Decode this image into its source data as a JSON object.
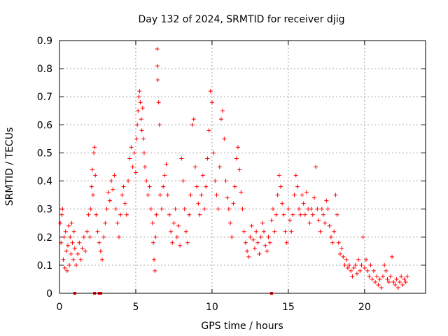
{
  "chart_data": {
    "type": "scatter",
    "title": "Day 132 of 2024, SRMTID for receiver djig",
    "xlabel": "GPS time / hours",
    "ylabel": "SRMTID / TECUs",
    "xlim": [
      0,
      24
    ],
    "ylim": [
      0,
      0.9
    ],
    "x_ticks": [
      0,
      5,
      10,
      15,
      20
    ],
    "y_ticks": [
      0,
      0.1,
      0.2,
      0.3,
      0.4,
      0.5,
      0.6,
      0.7,
      0.8,
      0.9
    ],
    "x_tick_labels": [
      "0",
      "5",
      "10",
      "15",
      "20"
    ],
    "y_tick_labels": [
      "0",
      "0.1",
      "0.2",
      "0.3",
      "0.4",
      "0.5",
      "0.6",
      "0.7",
      "0.8",
      "0.9"
    ],
    "grid": true,
    "marker": "+",
    "color": "#ff0000",
    "series": [
      {
        "name": "SRMTID",
        "points": [
          [
            0.05,
            0.25
          ],
          [
            0.1,
            0.18
          ],
          [
            0.15,
            0.28
          ],
          [
            0.2,
            0.3
          ],
          [
            0.25,
            0.12
          ],
          [
            0.3,
            0.2
          ],
          [
            0.35,
            0.09
          ],
          [
            0.4,
            0.22
          ],
          [
            0.45,
            0.15
          ],
          [
            0.5,
            0.08
          ],
          [
            0.55,
            0.17
          ],
          [
            0.6,
            0.24
          ],
          [
            0.65,
            0.1
          ],
          [
            0.7,
            0.2
          ],
          [
            0.75,
            0.14
          ],
          [
            0.8,
            0.25
          ],
          [
            0.85,
            0.18
          ],
          [
            0.9,
            0.12
          ],
          [
            0.95,
            0.22
          ],
          [
            1.0,
            0.16
          ],
          [
            1.1,
            0.1
          ],
          [
            1.2,
            0.14
          ],
          [
            1.3,
            0.18
          ],
          [
            1.4,
            0.12
          ],
          [
            1.5,
            0.16
          ],
          [
            1.6,
            0.2
          ],
          [
            1.7,
            0.15
          ],
          [
            1.8,
            0.22
          ],
          [
            1.9,
            0.28
          ],
          [
            2.0,
            0.2
          ],
          [
            2.05,
            0.3
          ],
          [
            2.1,
            0.38
          ],
          [
            2.15,
            0.44
          ],
          [
            2.2,
            0.35
          ],
          [
            2.25,
            0.5
          ],
          [
            2.3,
            0.52
          ],
          [
            2.35,
            0.42
          ],
          [
            2.4,
            0.28
          ],
          [
            2.5,
            0.22
          ],
          [
            2.6,
            0.18
          ],
          [
            2.7,
            0.15
          ],
          [
            2.8,
            0.12
          ],
          [
            2.9,
            0.2
          ],
          [
            3.0,
            0.25
          ],
          [
            3.1,
            0.3
          ],
          [
            3.2,
            0.36
          ],
          [
            3.3,
            0.33
          ],
          [
            3.4,
            0.4
          ],
          [
            3.5,
            0.37
          ],
          [
            3.6,
            0.42
          ],
          [
            3.7,
            0.3
          ],
          [
            3.8,
            0.25
          ],
          [
            3.9,
            0.2
          ],
          [
            4.0,
            0.28
          ],
          [
            4.1,
            0.35
          ],
          [
            4.2,
            0.38
          ],
          [
            4.3,
            0.32
          ],
          [
            4.4,
            0.28
          ],
          [
            4.5,
            0.4
          ],
          [
            4.6,
            0.48
          ],
          [
            4.7,
            0.52
          ],
          [
            4.8,
            0.45
          ],
          [
            4.9,
            0.5
          ],
          [
            5.0,
            0.43
          ],
          [
            5.05,
            0.55
          ],
          [
            5.1,
            0.6
          ],
          [
            5.15,
            0.65
          ],
          [
            5.2,
            0.7
          ],
          [
            5.25,
            0.72
          ],
          [
            5.3,
            0.68
          ],
          [
            5.35,
            0.62
          ],
          [
            5.4,
            0.58
          ],
          [
            5.45,
            0.66
          ],
          [
            5.5,
            0.55
          ],
          [
            5.55,
            0.5
          ],
          [
            5.6,
            0.45
          ],
          [
            5.7,
            0.4
          ],
          [
            5.8,
            0.35
          ],
          [
            5.9,
            0.38
          ],
          [
            6.0,
            0.3
          ],
          [
            6.1,
            0.25
          ],
          [
            6.15,
            0.18
          ],
          [
            6.2,
            0.12
          ],
          [
            6.25,
            0.08
          ],
          [
            6.3,
            0.2
          ],
          [
            6.35,
            0.28
          ],
          [
            6.4,
            0.87
          ],
          [
            6.42,
            0.81
          ],
          [
            6.45,
            0.76
          ],
          [
            6.5,
            0.68
          ],
          [
            6.55,
            0.6
          ],
          [
            6.6,
            0.35
          ],
          [
            6.7,
            0.3
          ],
          [
            6.8,
            0.38
          ],
          [
            6.9,
            0.42
          ],
          [
            7.0,
            0.46
          ],
          [
            7.1,
            0.35
          ],
          [
            7.2,
            0.28
          ],
          [
            7.3,
            0.22
          ],
          [
            7.4,
            0.18
          ],
          [
            7.5,
            0.25
          ],
          [
            7.6,
            0.3
          ],
          [
            7.7,
            0.2
          ],
          [
            7.8,
            0.24
          ],
          [
            7.9,
            0.17
          ],
          [
            8.0,
            0.48
          ],
          [
            8.1,
            0.4
          ],
          [
            8.2,
            0.3
          ],
          [
            8.3,
            0.22
          ],
          [
            8.4,
            0.18
          ],
          [
            8.5,
            0.28
          ],
          [
            8.6,
            0.35
          ],
          [
            8.7,
            0.6
          ],
          [
            8.8,
            0.62
          ],
          [
            8.9,
            0.45
          ],
          [
            9.0,
            0.38
          ],
          [
            9.1,
            0.32
          ],
          [
            9.2,
            0.28
          ],
          [
            9.3,
            0.35
          ],
          [
            9.4,
            0.42
          ],
          [
            9.5,
            0.3
          ],
          [
            9.6,
            0.38
          ],
          [
            9.7,
            0.48
          ],
          [
            9.8,
            0.58
          ],
          [
            9.9,
            0.72
          ],
          [
            10.0,
            0.68
          ],
          [
            10.1,
            0.5
          ],
          [
            10.2,
            0.4
          ],
          [
            10.3,
            0.35
          ],
          [
            10.4,
            0.3
          ],
          [
            10.5,
            0.45
          ],
          [
            10.6,
            0.62
          ],
          [
            10.7,
            0.65
          ],
          [
            10.8,
            0.55
          ],
          [
            10.9,
            0.4
          ],
          [
            11.0,
            0.34
          ],
          [
            11.1,
            0.3
          ],
          [
            11.2,
            0.25
          ],
          [
            11.3,
            0.2
          ],
          [
            11.4,
            0.32
          ],
          [
            11.5,
            0.38
          ],
          [
            11.6,
            0.48
          ],
          [
            11.7,
            0.52
          ],
          [
            11.8,
            0.44
          ],
          [
            11.9,
            0.36
          ],
          [
            12.0,
            0.3
          ],
          [
            12.1,
            0.22
          ],
          [
            12.2,
            0.18
          ],
          [
            12.3,
            0.15
          ],
          [
            12.4,
            0.13
          ],
          [
            12.5,
            0.2
          ],
          [
            12.6,
            0.24
          ],
          [
            12.7,
            0.19
          ],
          [
            12.8,
            0.16
          ],
          [
            12.9,
            0.22
          ],
          [
            13.0,
            0.18
          ],
          [
            13.1,
            0.14
          ],
          [
            13.2,
            0.2
          ],
          [
            13.3,
            0.25
          ],
          [
            13.4,
            0.22
          ],
          [
            13.5,
            0.17
          ],
          [
            13.6,
            0.15
          ],
          [
            13.7,
            0.2
          ],
          [
            13.8,
            0.18
          ],
          [
            13.9,
            0.26
          ],
          [
            14.0,
            0.3
          ],
          [
            14.1,
            0.22
          ],
          [
            14.2,
            0.28
          ],
          [
            14.3,
            0.35
          ],
          [
            14.4,
            0.42
          ],
          [
            14.5,
            0.38
          ],
          [
            14.6,
            0.32
          ],
          [
            14.7,
            0.28
          ],
          [
            14.8,
            0.22
          ],
          [
            14.9,
            0.18
          ],
          [
            15.0,
            0.3
          ],
          [
            15.1,
            0.26
          ],
          [
            15.2,
            0.22
          ],
          [
            15.3,
            0.28
          ],
          [
            15.4,
            0.35
          ],
          [
            15.5,
            0.42
          ],
          [
            15.6,
            0.38
          ],
          [
            15.7,
            0.3
          ],
          [
            15.8,
            0.28
          ],
          [
            15.9,
            0.35
          ],
          [
            16.0,
            0.32
          ],
          [
            16.1,
            0.28
          ],
          [
            16.2,
            0.36
          ],
          [
            16.3,
            0.3
          ],
          [
            16.4,
            0.25
          ],
          [
            16.5,
            0.3
          ],
          [
            16.6,
            0.28
          ],
          [
            16.7,
            0.34
          ],
          [
            16.8,
            0.45
          ],
          [
            16.9,
            0.3
          ],
          [
            17.0,
            0.26
          ],
          [
            17.1,
            0.22
          ],
          [
            17.2,
            0.3
          ],
          [
            17.3,
            0.28
          ],
          [
            17.4,
            0.25
          ],
          [
            17.5,
            0.33
          ],
          [
            17.6,
            0.3
          ],
          [
            17.7,
            0.24
          ],
          [
            17.8,
            0.2
          ],
          [
            17.9,
            0.18
          ],
          [
            18.0,
            0.22
          ],
          [
            18.1,
            0.35
          ],
          [
            18.2,
            0.28
          ],
          [
            18.3,
            0.18
          ],
          [
            18.4,
            0.14
          ],
          [
            18.5,
            0.16
          ],
          [
            18.6,
            0.13
          ],
          [
            18.7,
            0.1
          ],
          [
            18.8,
            0.12
          ],
          [
            18.9,
            0.09
          ],
          [
            19.0,
            0.1
          ],
          [
            19.1,
            0.08
          ],
          [
            19.2,
            0.06
          ],
          [
            19.3,
            0.09
          ],
          [
            19.4,
            0.1
          ],
          [
            19.5,
            0.07
          ],
          [
            19.6,
            0.12
          ],
          [
            19.7,
            0.08
          ],
          [
            19.8,
            0.1
          ],
          [
            19.9,
            0.2
          ],
          [
            20.0,
            0.09
          ],
          [
            20.1,
            0.12
          ],
          [
            20.2,
            0.08
          ],
          [
            20.3,
            0.06
          ],
          [
            20.4,
            0.1
          ],
          [
            20.5,
            0.05
          ],
          [
            20.6,
            0.08
          ],
          [
            20.7,
            0.04
          ],
          [
            20.8,
            0.06
          ],
          [
            20.9,
            0.03
          ],
          [
            21.0,
            0.05
          ],
          [
            21.1,
            0.02
          ],
          [
            21.2,
            0.06
          ],
          [
            21.3,
            0.1
          ],
          [
            21.4,
            0.08
          ],
          [
            21.5,
            0.05
          ],
          [
            21.6,
            0.04
          ],
          [
            21.7,
            0.06
          ],
          [
            21.8,
            0.13
          ],
          [
            21.9,
            0.04
          ],
          [
            22.0,
            0.03
          ],
          [
            22.1,
            0.05
          ],
          [
            22.2,
            0.02
          ],
          [
            22.3,
            0.04
          ],
          [
            22.4,
            0.06
          ],
          [
            22.5,
            0.03
          ],
          [
            22.6,
            0.05
          ],
          [
            22.7,
            0.04
          ],
          [
            22.8,
            0.06
          ]
        ]
      }
    ],
    "zero_markers": [
      1.0,
      2.3,
      2.6,
      2.7,
      13.9
    ]
  }
}
